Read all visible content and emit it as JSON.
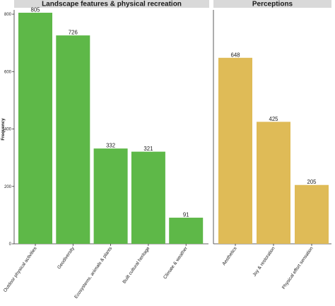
{
  "chart_data": {
    "type": "bar",
    "ylabel": "Frequency",
    "ylim": [
      0,
      810
    ],
    "y_ticks": [
      "0",
      "200",
      "400",
      "600",
      "800"
    ],
    "grid": false,
    "panels": [
      {
        "title": "Landscape features & physical recreation",
        "color": "#5eb848",
        "categories": [
          "Outdoor physical activities",
          "Geodiversity",
          "Ecosystems, animals & plants",
          "Built cultural heritage",
          "Climate & weather"
        ],
        "values": [
          805,
          726,
          332,
          321,
          91
        ],
        "labels": [
          "805",
          "726",
          "332",
          "321",
          "91"
        ]
      },
      {
        "title": "Perceptions",
        "color": "#dfbb57",
        "categories": [
          "Aesthetics",
          "Joy & restoration",
          "Physical effort sensation"
        ],
        "values": [
          648,
          425,
          205
        ],
        "labels": [
          "648",
          "425",
          "205"
        ]
      }
    ]
  }
}
